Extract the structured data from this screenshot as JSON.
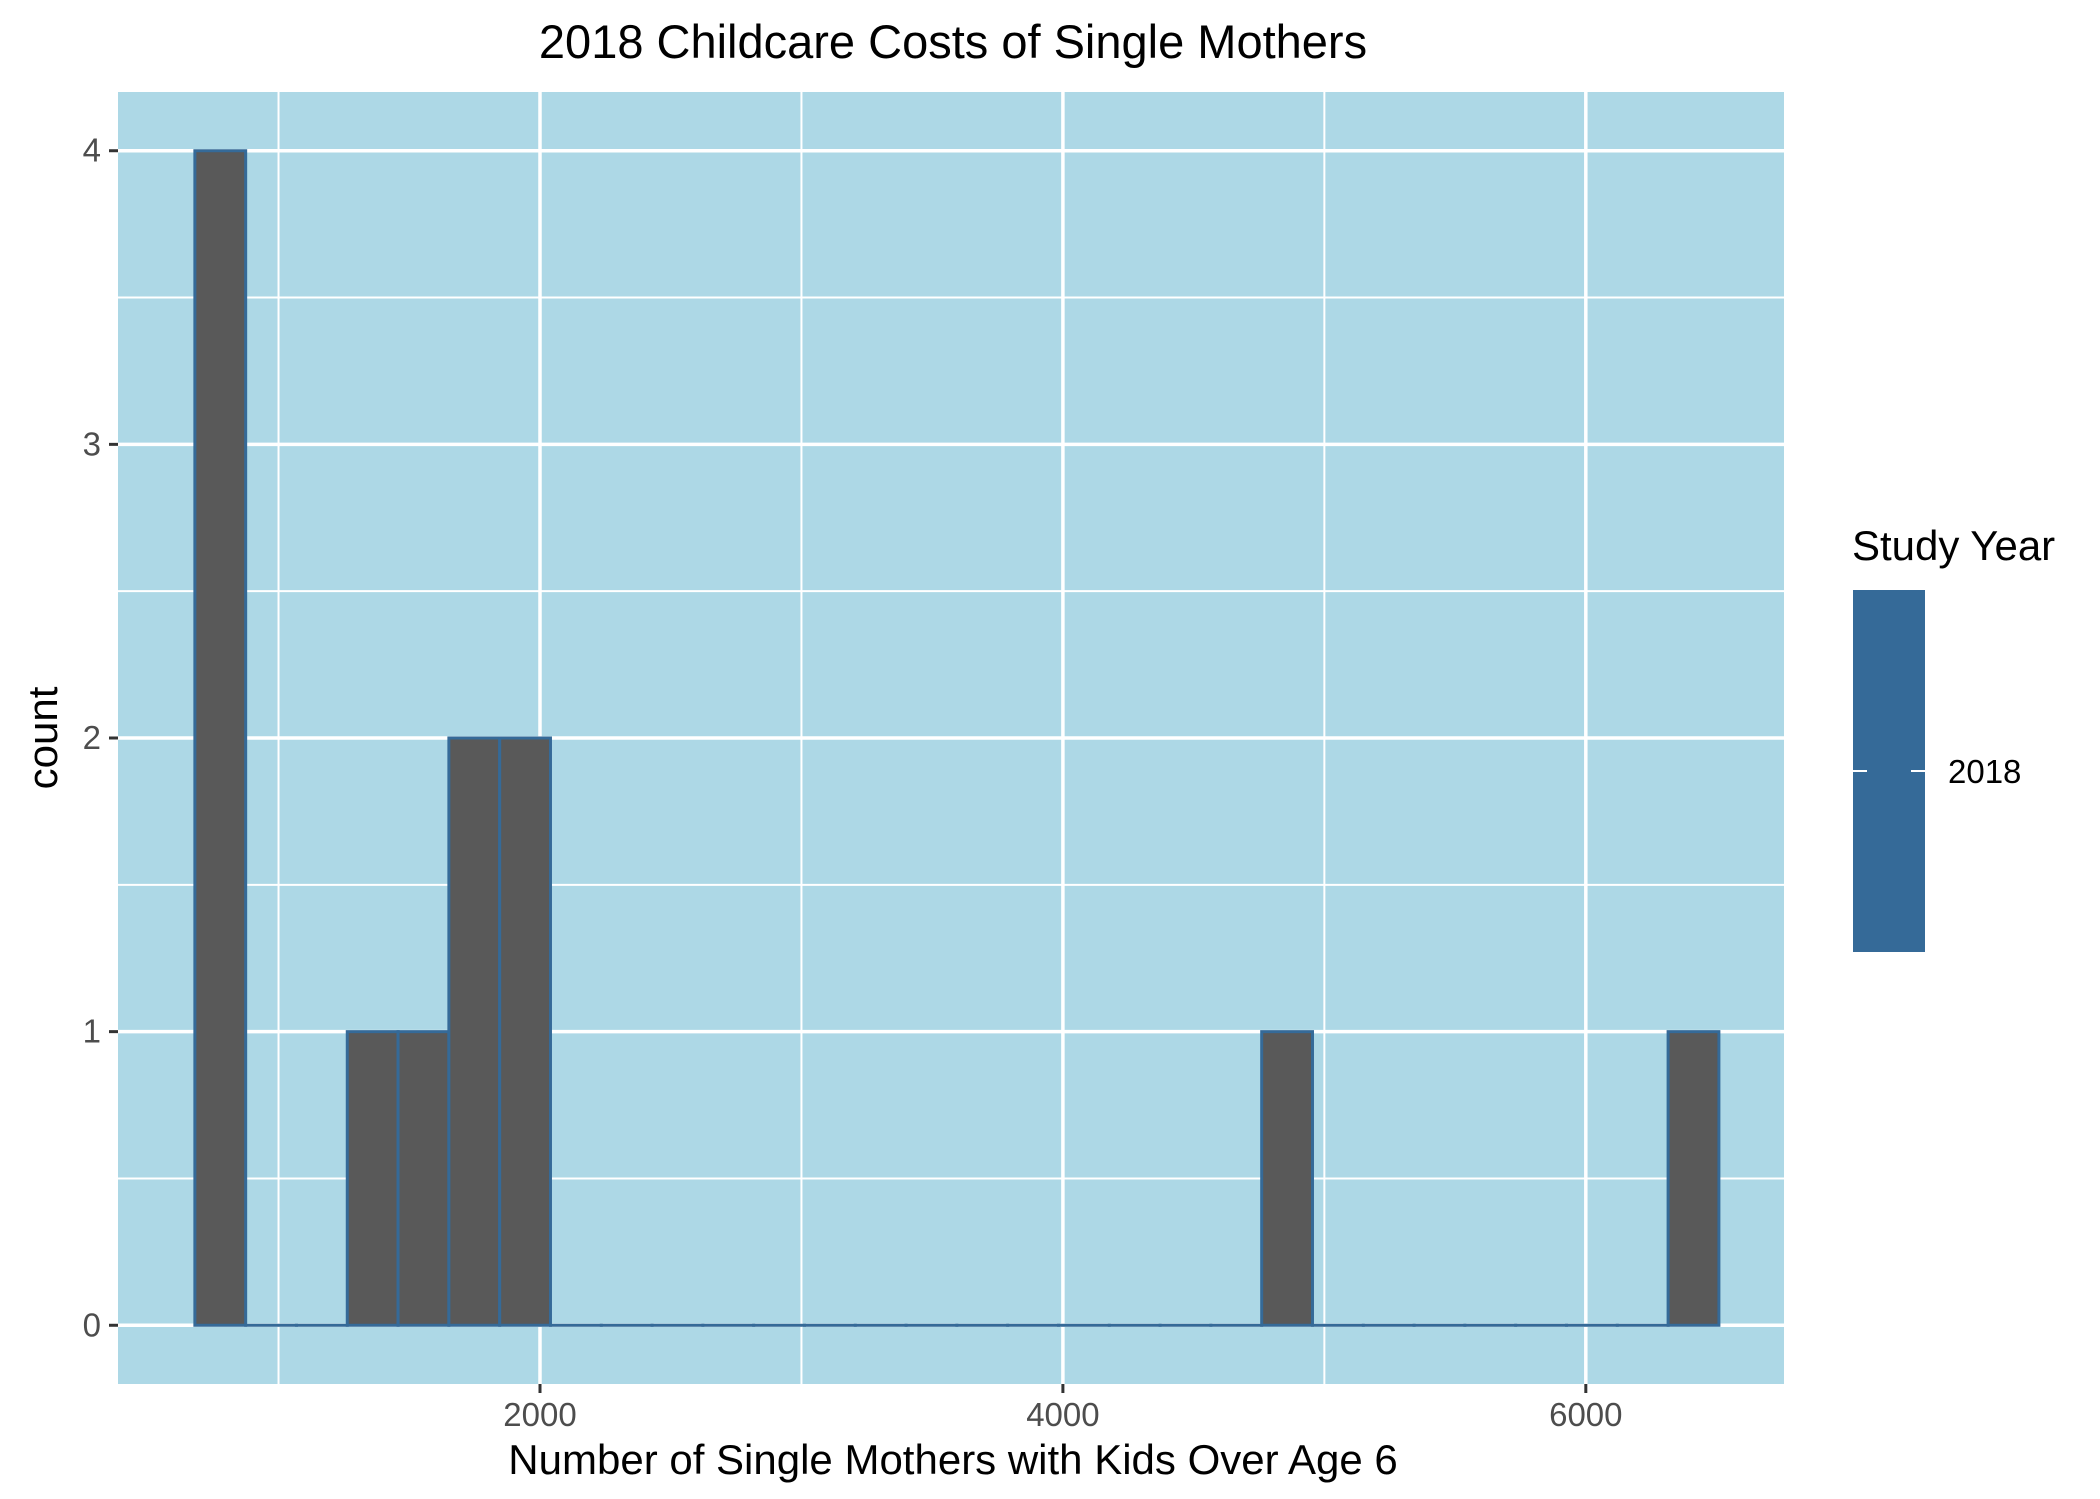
{
  "chart_data": {
    "type": "bar",
    "subtype": "histogram",
    "title": "2018 Childcare Costs of Single Mothers",
    "xlabel": "Number of Single Mothers with Kids Over Age 6",
    "ylabel": "count",
    "xlim": [
      386,
      6758
    ],
    "ylim": [
      -0.2,
      4.2
    ],
    "x_ticks": [
      2000,
      4000,
      6000
    ],
    "y_ticks": [
      0,
      1,
      2,
      3,
      4
    ],
    "x_tick_labels": [
      "2000",
      "4000",
      "6000"
    ],
    "y_tick_labels": [
      "0",
      "1",
      "2",
      "3",
      "4"
    ],
    "grid": true,
    "panel_background": "#add8e6",
    "bar_fill": "#595959",
    "bar_outline": "#356a98",
    "bin_width": 194.3,
    "bins": [
      {
        "x0": 680.0,
        "x1": 874.3,
        "count": 4
      },
      {
        "x0": 874.3,
        "x1": 1068.6,
        "count": 0
      },
      {
        "x0": 1068.6,
        "x1": 1262.9,
        "count": 0
      },
      {
        "x0": 1262.9,
        "x1": 1457.2,
        "count": 1
      },
      {
        "x0": 1457.2,
        "x1": 1651.5,
        "count": 1
      },
      {
        "x0": 1651.5,
        "x1": 1845.8,
        "count": 2
      },
      {
        "x0": 1845.8,
        "x1": 2040.1,
        "count": 2
      },
      {
        "x0": 2040.1,
        "x1": 2234.4,
        "count": 0
      },
      {
        "x0": 2234.4,
        "x1": 2428.7,
        "count": 0
      },
      {
        "x0": 2428.7,
        "x1": 2623.0,
        "count": 0
      },
      {
        "x0": 2623.0,
        "x1": 2817.3,
        "count": 0
      },
      {
        "x0": 2817.3,
        "x1": 3011.6,
        "count": 0
      },
      {
        "x0": 3011.6,
        "x1": 3205.9,
        "count": 0
      },
      {
        "x0": 3205.9,
        "x1": 3400.2,
        "count": 0
      },
      {
        "x0": 3400.2,
        "x1": 3594.5,
        "count": 0
      },
      {
        "x0": 3594.5,
        "x1": 3788.8,
        "count": 0
      },
      {
        "x0": 3788.8,
        "x1": 3983.1,
        "count": 0
      },
      {
        "x0": 3983.1,
        "x1": 4177.4,
        "count": 0
      },
      {
        "x0": 4177.4,
        "x1": 4371.7,
        "count": 0
      },
      {
        "x0": 4371.7,
        "x1": 4566.0,
        "count": 0
      },
      {
        "x0": 4566.0,
        "x1": 4760.3,
        "count": 0
      },
      {
        "x0": 4760.3,
        "x1": 4954.6,
        "count": 1
      },
      {
        "x0": 4954.6,
        "x1": 5148.9,
        "count": 0
      },
      {
        "x0": 5148.9,
        "x1": 5343.2,
        "count": 0
      },
      {
        "x0": 5343.2,
        "x1": 5537.5,
        "count": 0
      },
      {
        "x0": 5537.5,
        "x1": 5731.8,
        "count": 0
      },
      {
        "x0": 5731.8,
        "x1": 5926.1,
        "count": 0
      },
      {
        "x0": 5926.1,
        "x1": 6120.4,
        "count": 0
      },
      {
        "x0": 6120.4,
        "x1": 6314.7,
        "count": 0
      },
      {
        "x0": 6314.7,
        "x1": 6509.0,
        "count": 1
      }
    ],
    "legend": {
      "title": "Study Year",
      "label": "2018",
      "color": "#356a98",
      "position": "right"
    }
  }
}
